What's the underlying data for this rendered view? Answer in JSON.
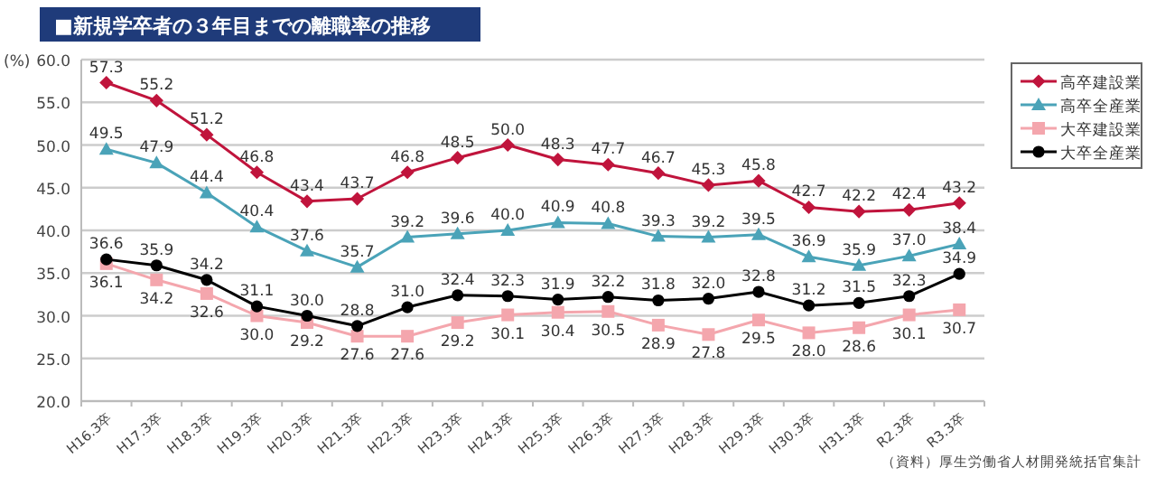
{
  "chart_data": {
    "type": "line",
    "title": "■新規学卒者の３年目までの離職率の推移",
    "ylabel": "(%)",
    "categories": [
      "H16.3卒",
      "H17.3卒",
      "H18.3卒",
      "H19.3卒",
      "H20.3卒",
      "H21.3卒",
      "H22.3卒",
      "H23.3卒",
      "H24.3卒",
      "H25.3卒",
      "H26.3卒",
      "H27.3卒",
      "H28.3卒",
      "H29.3卒",
      "H30.3卒",
      "H31.3卒",
      "R2.3卒",
      "R3.3卒"
    ],
    "series": [
      {
        "name": "高卒建設業",
        "color": "#c0143c",
        "marker": "diamond",
        "values": [
          57.3,
          55.2,
          51.2,
          46.8,
          43.4,
          43.7,
          46.8,
          48.5,
          50.0,
          48.3,
          47.7,
          46.7,
          45.3,
          45.8,
          42.7,
          42.2,
          42.4,
          43.2
        ],
        "value_labels": [
          "57.3",
          "55.2",
          "51.2",
          "46.8",
          "43.4",
          "43.7",
          "46.8",
          "48.5",
          "50.0",
          "48.3",
          "47.7",
          "46.7",
          "45.3",
          "45.8",
          "42.7",
          "42.2",
          "42.4",
          "43.2"
        ]
      },
      {
        "name": "高卒全産業",
        "color": "#4aa3b8",
        "marker": "triangle",
        "values": [
          49.5,
          47.9,
          44.4,
          40.4,
          37.6,
          35.7,
          39.2,
          39.6,
          40.0,
          40.9,
          40.8,
          39.3,
          39.2,
          39.5,
          36.9,
          35.9,
          37.0,
          38.4
        ],
        "value_labels": [
          "49.5",
          "47.9",
          "44.4",
          "40.4",
          "37.6",
          "35.7",
          "39.2",
          "39.6",
          "40.0",
          "40.9",
          "40.8",
          "39.3",
          "39.2",
          "39.5",
          "36.9",
          "35.9",
          "37.0",
          "38.4"
        ]
      },
      {
        "name": "大卒建設業",
        "color": "#f4a6ad",
        "marker": "square",
        "values": [
          36.1,
          34.2,
          32.6,
          30.0,
          29.2,
          27.6,
          27.6,
          29.2,
          30.1,
          30.4,
          30.5,
          28.9,
          27.8,
          29.5,
          28.0,
          28.6,
          30.1,
          30.7
        ],
        "value_labels": [
          "36.1",
          "34.2",
          "32.6",
          "30.0",
          "29.2",
          "27.6",
          "27.6",
          "29.2",
          "30.1",
          "30.4",
          "30.5",
          "28.9",
          "27.8",
          "29.5",
          "28.0",
          "28.6",
          "30.1",
          "30.7"
        ]
      },
      {
        "name": "大卒全産業",
        "color": "#000000",
        "marker": "circle",
        "values": [
          36.6,
          35.9,
          34.2,
          31.1,
          30.0,
          28.8,
          31.0,
          32.4,
          32.3,
          31.9,
          32.2,
          31.8,
          32.0,
          32.8,
          31.2,
          31.5,
          32.3,
          34.9
        ],
        "value_labels": [
          "36.6",
          "35.9",
          "34.2",
          "31.1",
          "30.0",
          "28.8",
          "31.0",
          "32.4",
          "32.3",
          "31.9",
          "32.2",
          "31.8",
          "32.0",
          "32.8",
          "31.2",
          "31.5",
          "32.3",
          "34.9"
        ]
      }
    ],
    "ylim": [
      20,
      60
    ],
    "yticks": [
      {
        "value": 20,
        "label": "20.0"
      },
      {
        "value": 25,
        "label": "25.0"
      },
      {
        "value": 30,
        "label": "30.0"
      },
      {
        "value": 35,
        "label": "35.0"
      },
      {
        "value": 40,
        "label": "40.0"
      },
      {
        "value": 45,
        "label": "45.0"
      },
      {
        "value": 50,
        "label": "50.0"
      },
      {
        "value": 55,
        "label": "55.0"
      },
      {
        "value": 60,
        "label": "60.0"
      }
    ],
    "grid": "y",
    "legend": "right",
    "annotations": [
      "（資料）厚生労働省人材開発統括官集計"
    ]
  }
}
